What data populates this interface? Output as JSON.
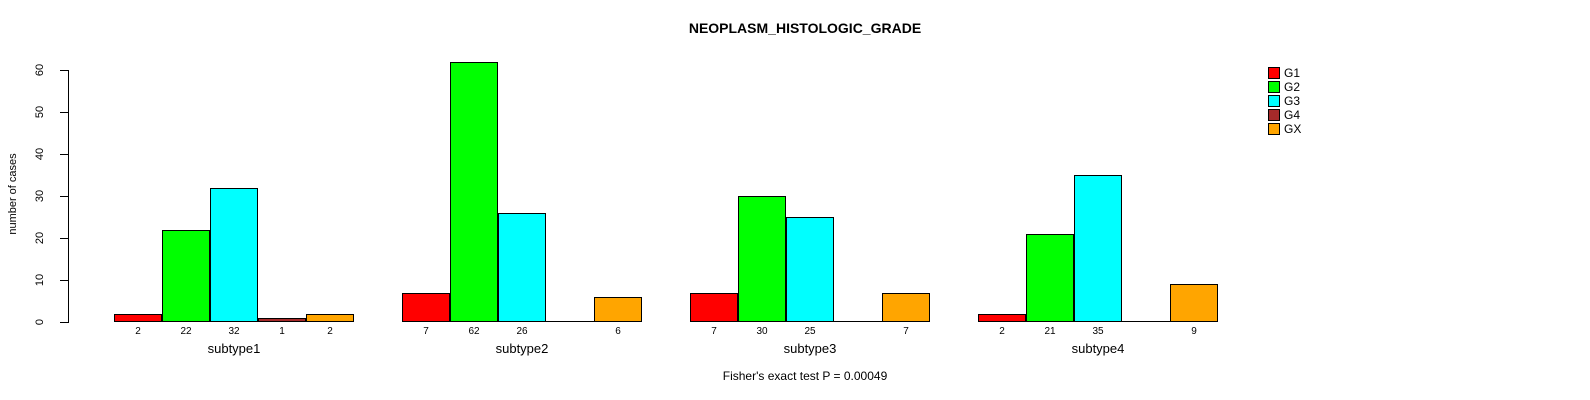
{
  "chart_data": {
    "type": "bar",
    "title": "NEOPLASM_HISTOLOGIC_GRADE",
    "ylabel": "number of cases",
    "footer": "Fisher's exact test P = 0.00049",
    "categories": [
      "subtype1",
      "subtype2",
      "subtype3",
      "subtype4"
    ],
    "series": [
      {
        "name": "G1",
        "color": "#FF0000",
        "values": [
          2,
          7,
          7,
          2
        ]
      },
      {
        "name": "G2",
        "color": "#00FF00",
        "values": [
          22,
          62,
          30,
          21
        ]
      },
      {
        "name": "G3",
        "color": "#00FFFF",
        "values": [
          32,
          26,
          25,
          35
        ]
      },
      {
        "name": "G4",
        "color": "#A52A2A",
        "values": [
          1,
          0,
          0,
          0
        ]
      },
      {
        "name": "GX",
        "color": "#FFA500",
        "values": [
          2,
          6,
          7,
          9
        ]
      }
    ],
    "ylim": [
      0,
      60
    ],
    "yticks": [
      0,
      10,
      20,
      30,
      40,
      50,
      60
    ],
    "grid": false,
    "legend_position": "top-right",
    "bar_value_labels_shown": true,
    "zero_bars_unlabeled": true
  }
}
